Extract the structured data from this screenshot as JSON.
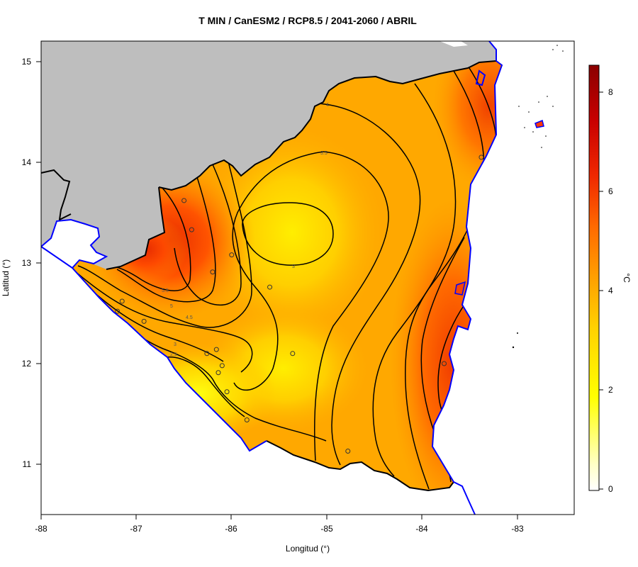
{
  "title": "T MIN / CanESM2 / RCP8.5 / 2041-2060 / ABRIL",
  "xlabel": "Longitud (°)",
  "ylabel": "Latitud (°)",
  "x_ticks": [
    "-88",
    "-87",
    "-86",
    "-85",
    "-84",
    "-83"
  ],
  "y_ticks": [
    "11",
    "12",
    "13",
    "14",
    "15"
  ],
  "colorbar": {
    "unit": "°C",
    "ticks": [
      "0",
      "2",
      "4",
      "6",
      "8"
    ],
    "range": [
      0,
      8.6
    ],
    "colors": [
      "#ffffff",
      "#ffff00",
      "#ffd200",
      "#ffa000",
      "#ff5a00",
      "#e61400",
      "#8b0000"
    ]
  },
  "colors": {
    "background_land": "#bebebe",
    "coastline": "#0000ff",
    "border": "#000000",
    "contour": "#000000"
  },
  "contour_labels": [
    "4",
    "3.5",
    "3",
    "5.5",
    "5",
    "4.5",
    "3",
    "2.5"
  ],
  "chart_data": {
    "type": "heatmap",
    "title": "T MIN / CanESM2 / RCP8.5 / 2041-2060 / ABRIL",
    "xlabel": "Longitud (°)",
    "ylabel": "Latitud (°)",
    "xlim": [
      -88,
      -82.4
    ],
    "ylim": [
      10.5,
      15.2
    ],
    "value_range": [
      0,
      8.6
    ],
    "unit": "°C",
    "contour_levels": [
      2.5,
      3,
      3.5,
      4,
      4.5,
      5,
      5.5
    ],
    "approx_values": {
      "center_min": 2.8,
      "southwest_pacific_coast": 2.3,
      "northwest_max": 6.2,
      "caribbean_coast_max": 5.9,
      "northeast": 5.2
    },
    "stations": [
      [
        -86.5,
        13.62
      ],
      [
        -86.42,
        13.33
      ],
      [
        -86.0,
        13.08
      ],
      [
        -86.2,
        12.91
      ],
      [
        -85.6,
        12.76
      ],
      [
        -87.15,
        12.62
      ],
      [
        -87.2,
        12.52
      ],
      [
        -86.92,
        12.42
      ],
      [
        -86.16,
        12.14
      ],
      [
        -86.26,
        12.1
      ],
      [
        -85.36,
        12.1
      ],
      [
        -86.1,
        11.98
      ],
      [
        -86.14,
        11.91
      ],
      [
        -86.05,
        11.72
      ],
      [
        -85.84,
        11.44
      ],
      [
        -84.78,
        11.13
      ],
      [
        -83.77,
        12.0
      ],
      [
        -83.38,
        14.05
      ]
    ]
  }
}
